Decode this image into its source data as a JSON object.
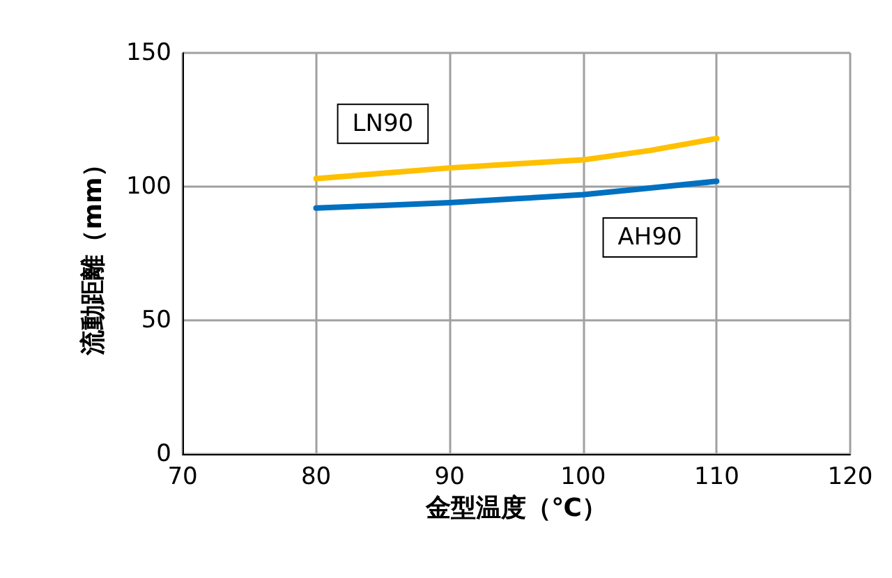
{
  "chart_data": {
    "type": "line",
    "xlabel": "金型温度（℃）",
    "ylabel": "流動距離（mm）",
    "x": [
      80,
      85,
      90,
      95,
      100,
      105,
      110
    ],
    "series": [
      {
        "name": "LN90",
        "color": "#ffc000",
        "values": [
          103,
          105,
          107,
          108.5,
          110,
          113.5,
          118
        ]
      },
      {
        "name": "AH90",
        "color": "#0070c0",
        "values": [
          92,
          93,
          94,
          95.5,
          97,
          99.5,
          102
        ]
      }
    ],
    "xlim": [
      70,
      120
    ],
    "xticks": [
      70,
      80,
      90,
      100,
      110,
      120
    ],
    "ylim": [
      0,
      150
    ],
    "yticks": [
      0,
      50,
      100,
      150
    ],
    "grid": true,
    "legend": false,
    "marker": "none",
    "line_style": "solid"
  }
}
